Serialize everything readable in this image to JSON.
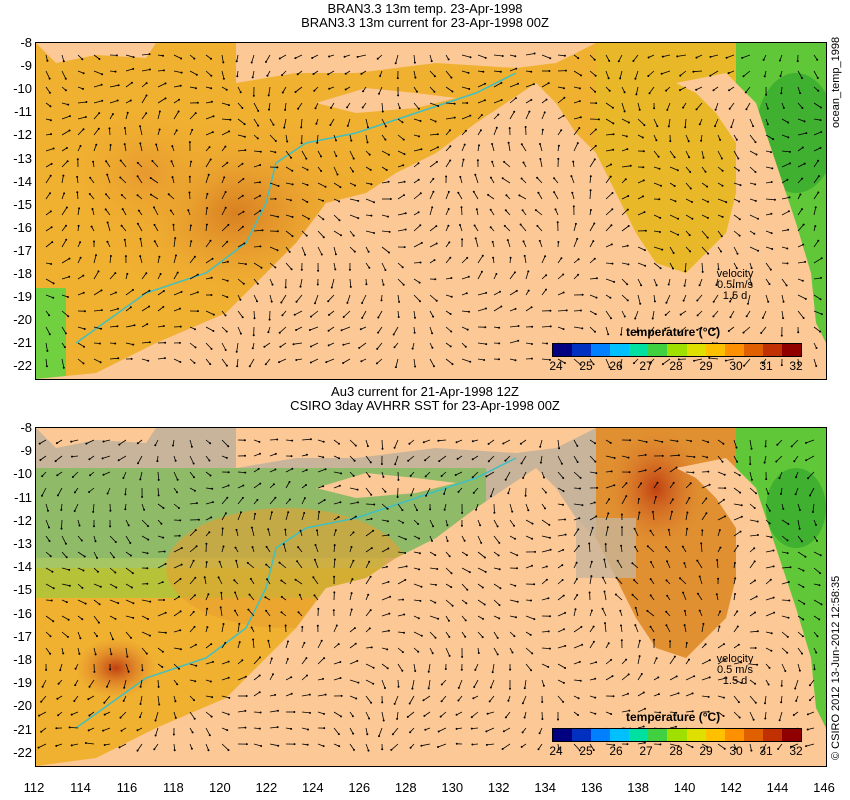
{
  "top_panel": {
    "title_line1": "BRAN3.3 13m temp. 23-Apr-1998",
    "title_line2": "BRAN3.3 13m current for 23-Apr-1998 00Z",
    "legend_title": "temperature (°C)",
    "velocity_label": "velocity",
    "velocity_scale": "0.5 m/s",
    "velocity_time": "1.5 d",
    "side_label": "ocean_temp_1998"
  },
  "bottom_panel": {
    "title_line1": "Au3 current for 21-Apr-1998 12Z",
    "title_line2": "CSIRO 3day AVHRR SST for 23-Apr-1998 00Z",
    "legend_title": "temperature (°C)",
    "velocity_label": "velocity",
    "velocity_scale": "0.5 m/s",
    "velocity_time": "1.5 d",
    "side_label": "© CSIRO 2012  13-Jun-2012 12:58:35"
  },
  "axes": {
    "lat_labels": [
      "-8",
      "-9",
      "-10",
      "-11",
      "-12",
      "-13",
      "-14",
      "-15",
      "-16",
      "-17",
      "-18",
      "-19",
      "-20",
      "-21",
      "-22"
    ],
    "lon_labels": [
      "112",
      "114",
      "116",
      "118",
      "120",
      "122",
      "124",
      "126",
      "128",
      "130",
      "132",
      "134",
      "136",
      "138",
      "140",
      "142",
      "144",
      "146"
    ]
  },
  "colorbar": {
    "ticks": [
      "24",
      "25",
      "26",
      "27",
      "28",
      "29",
      "30",
      "31",
      "32"
    ],
    "colors": [
      "#000080",
      "#0030c0",
      "#0080ff",
      "#00c0ff",
      "#00e0a0",
      "#40d040",
      "#a0e000",
      "#e0e000",
      "#ffc000",
      "#ff9000",
      "#e06000",
      "#c03000",
      "#900000"
    ]
  },
  "colors": {
    "land": "#fcc896",
    "warm_sea": "#f0a030",
    "mid_sea": "#e8c020",
    "cool_sea": "#70d040",
    "cloud": "#c8b49a"
  }
}
